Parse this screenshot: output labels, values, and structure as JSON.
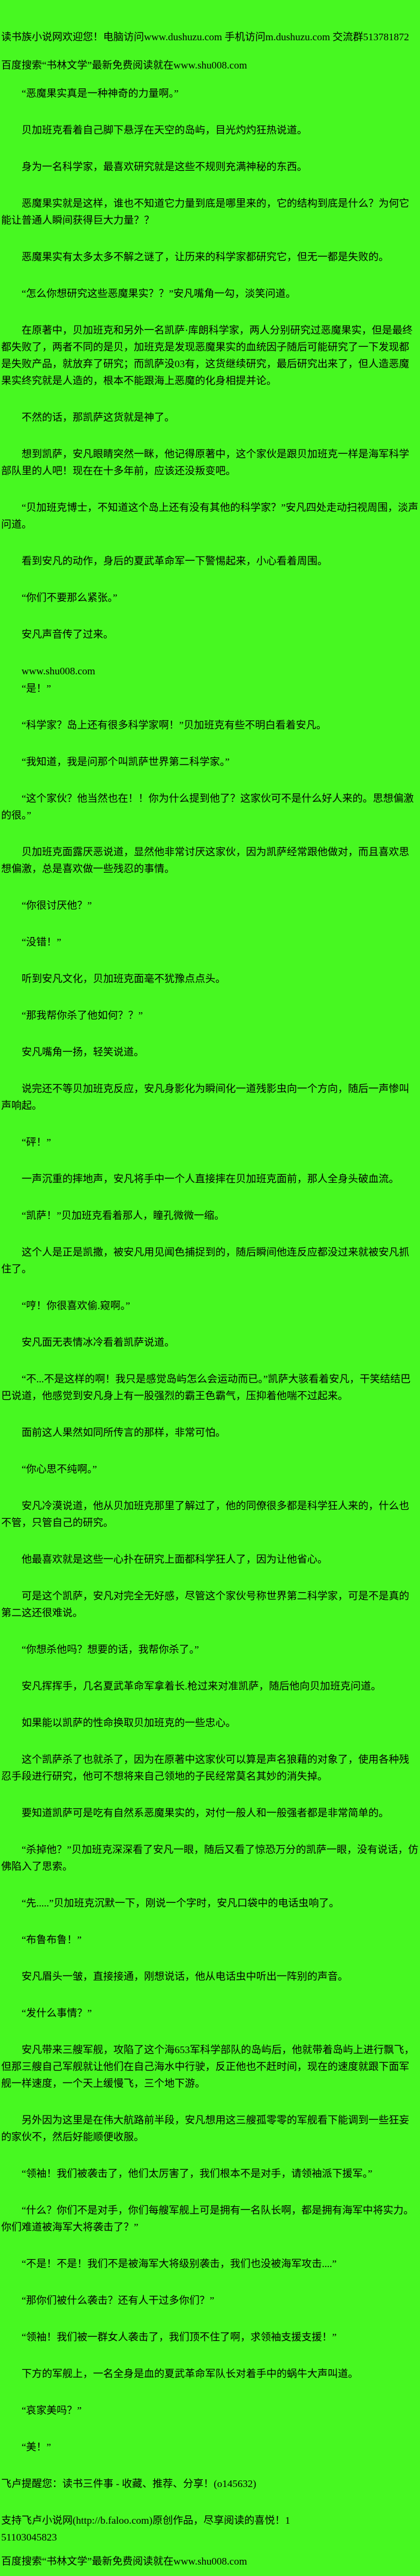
{
  "page": {
    "kind": "web-novel-reading-page",
    "background_color": "#47F821",
    "text_color": "#000000"
  },
  "paragraphs": [
    {
      "name": "site-welcome-line",
      "indent": false,
      "gap": "header",
      "text": "读书族小说网欢迎您！电脑访问www.dushuzu.com 手机访问m.dushuzu.com 交流群513781872"
    },
    {
      "name": "baidu-search-ad-top",
      "indent": false,
      "gap": "header",
      "text": "百度搜索“书林文学”最新免费阅读就在www.shu008.com"
    },
    {
      "name": "novel-paragraph",
      "indent": true,
      "text": "“恶魔果实真是一种神奇的力量啊。”"
    },
    {
      "name": "novel-paragraph",
      "indent": true,
      "text": "贝加班克看着自己脚下悬浮在天空的岛屿，目光灼灼狂热说道。"
    },
    {
      "name": "novel-paragraph",
      "indent": true,
      "text": "身为一名科学家，最喜欢研究就是这些不规则充满神秘的东西。"
    },
    {
      "name": "novel-paragraph",
      "indent": true,
      "text": "恶魔果实就是这样，谁也不知道它力量到底是哪里来的，它的结构到底是什么？为何它能让普通人瞬间获得巨大力量？？"
    },
    {
      "name": "novel-paragraph",
      "indent": true,
      "text": "恶魔果实有太多太多不解之谜了，让历来的科学家都研究它，但无一都是失败的。"
    },
    {
      "name": "novel-paragraph",
      "indent": true,
      "text": "“怎么你想研究这些恶魔果实？？”安凡嘴角一勾，淡笑问道。"
    },
    {
      "name": "novel-paragraph",
      "indent": true,
      "text": "在原著中，贝加班克和另外一名凯萨·库朗科学家，两人分别研究过恶魔果实，但是最终都失败了，两者不同的是贝，加班克是发现恶魔果实的血统因子随后可能研究了一下发现都是失败产品，就放弃了研究；而凯萨没03有，这货继续研究，最后研究出来了，但人造恶魔果实终究就是人造的，根本不能跟海上恶魔的化身相提并论。"
    },
    {
      "name": "novel-paragraph",
      "indent": true,
      "text": "不然的话，那凯萨这货就是神了。"
    },
    {
      "name": "novel-paragraph",
      "indent": true,
      "text": "想到凯萨，安凡眼睛突然一眯，他记得原著中，这个家伙是跟贝加班克一样是海军科学部队里的人吧！现在在十多年前，应该还没叛变吧。"
    },
    {
      "name": "novel-paragraph",
      "indent": true,
      "text": "“贝加班克博士，不知道这个岛上还有没有其他的科学家？”安凡四处走动扫视周围，淡声问道。"
    },
    {
      "name": "novel-paragraph",
      "indent": true,
      "text": "看到安凡的动作，身后的夏武革命军一下警惕起来，小心看着周围。"
    },
    {
      "name": "novel-paragraph",
      "indent": true,
      "text": "“你们不要那么紧张。”"
    },
    {
      "name": "novel-paragraph",
      "indent": true,
      "text": "安凡声音传了过来。"
    },
    {
      "name": "inline-ad-url",
      "indent": true,
      "gap": "tight",
      "text": "www.shu008.com"
    },
    {
      "name": "novel-paragraph",
      "indent": true,
      "text": "“是！”"
    },
    {
      "name": "novel-paragraph",
      "indent": true,
      "text": "“科学家？岛上还有很多科学家啊！”贝加班克有些不明白看着安凡。"
    },
    {
      "name": "novel-paragraph",
      "indent": true,
      "text": "“我知道，我是问那个叫凯萨世界第二科学家。”"
    },
    {
      "name": "novel-paragraph",
      "indent": true,
      "text": "“这个家伙？他当然也在！！你为什么提到他了？这家伙可不是什么好人来的。思想偏激的很。”"
    },
    {
      "name": "novel-paragraph",
      "indent": true,
      "text": "贝加班克面露厌恶说道，显然他非常讨厌这家伙，因为凯萨经常跟他做对，而且喜欢思想偏激，总是喜欢做一些残忍的事情。"
    },
    {
      "name": "novel-paragraph",
      "indent": true,
      "text": "“你很讨厌他？”"
    },
    {
      "name": "novel-paragraph",
      "indent": true,
      "text": "“没错！”"
    },
    {
      "name": "novel-paragraph",
      "indent": true,
      "text": "听到安凡文化，贝加班克面毫不犹豫点点头。"
    },
    {
      "name": "novel-paragraph",
      "indent": true,
      "text": "“那我帮你杀了他如何？？”"
    },
    {
      "name": "novel-paragraph",
      "indent": true,
      "text": "安凡嘴角一扬，轻笑说道。"
    },
    {
      "name": "novel-paragraph",
      "indent": true,
      "text": "说完还不等贝加班克反应，安凡身影化为瞬间化一道残影虫向一个方向，随后一声惨叫声响起。"
    },
    {
      "name": "novel-paragraph",
      "indent": true,
      "text": "“砰！”"
    },
    {
      "name": "novel-paragraph",
      "indent": true,
      "text": "一声沉重的摔地声，安凡将手中一个人直接摔在贝加班克面前，那人全身头破血流。"
    },
    {
      "name": "novel-paragraph",
      "indent": true,
      "text": "“凯萨！”贝加班克看着那人，瞳孔微微一缩。"
    },
    {
      "name": "novel-paragraph",
      "indent": true,
      "text": "这个人是正是凯撒，被安凡用见闻色捕捉到的，随后瞬间他连反应都没过来就被安凡抓住了。"
    },
    {
      "name": "novel-paragraph",
      "indent": true,
      "text": "“哼！你很喜欢偷.窥啊。”"
    },
    {
      "name": "novel-paragraph",
      "indent": true,
      "text": "安凡面无表情冰冷看着凯萨说道。"
    },
    {
      "name": "novel-paragraph",
      "indent": true,
      "text": "“不...不是这样的啊！我只是感觉岛屿怎么会运动而已。”凯萨大骇看着安凡，干笑结结巴巴说道，他感觉到安凡身上有一股强烈的霸王色霸气，压抑着他喘不过起来。"
    },
    {
      "name": "novel-paragraph",
      "indent": true,
      "text": "面前这人果然如同所传言的那样，非常可怕。"
    },
    {
      "name": "novel-paragraph",
      "indent": true,
      "text": "“你心思不纯啊。”"
    },
    {
      "name": "novel-paragraph",
      "indent": true,
      "text": "安凡冷漠说道，他从贝加班克那里了解过了，他的同僚很多都是科学狂人来的，什么也不管，只管自己的研究。"
    },
    {
      "name": "novel-paragraph",
      "indent": true,
      "text": "他最喜欢就是这些一心扑在研究上面都科学狂人了，因为让他省心。"
    },
    {
      "name": "novel-paragraph",
      "indent": true,
      "text": "可是这个凯萨，安凡对完全无好感，尽管这个家伙号称世界第二科学家，可是不是真的第二这还很难说。"
    },
    {
      "name": "novel-paragraph",
      "indent": true,
      "text": "“你想杀他吗？想要的话，我帮你杀了。”"
    },
    {
      "name": "novel-paragraph",
      "indent": true,
      "text": "安凡挥挥手，几名夏武革命军拿着长.枪过来对准凯萨，随后他向贝加班克问道。"
    },
    {
      "name": "novel-paragraph",
      "indent": true,
      "text": "如果能以凯萨的性命换取贝加班克的一些忠心。"
    },
    {
      "name": "novel-paragraph",
      "indent": true,
      "text": "这个凯萨杀了也就杀了，因为在原著中这家伙可以算是声名狼藉的对象了，使用各种残忍手段进行研究，他可不想将来自己领地的子民经常莫名其妙的消失掉。"
    },
    {
      "name": "novel-paragraph",
      "indent": true,
      "text": "要知道凯萨可是吃有自然系恶魔果实的，对付一般人和一般强者都是非常简单的。"
    },
    {
      "name": "novel-paragraph",
      "indent": true,
      "text": "“杀掉他？”贝加班克深深看了安凡一眼，随后又看了惊恐万分的凯萨一眼，没有说话，仿佛陷入了思索。"
    },
    {
      "name": "novel-paragraph",
      "indent": true,
      "text": "“先.....”贝加班克沉默一下，刚说一个字时，安凡口袋中的电话虫响了。"
    },
    {
      "name": "novel-paragraph",
      "indent": true,
      "text": "“布鲁布鲁！”"
    },
    {
      "name": "novel-paragraph",
      "indent": true,
      "text": "安凡眉头一皱，直接接通，刚想说话，他从电话虫中听出一阵别的声音。"
    },
    {
      "name": "novel-paragraph",
      "indent": true,
      "text": "“发什么事情？”"
    },
    {
      "name": "novel-paragraph",
      "indent": true,
      "text": "安凡带来三艘军舰，攻陷了这个海653军科学部队的岛屿后，他就带着岛屿上进行飘飞，但那三艘自己军舰就让他们在自己海水中行驶，反正他也不赶时间，现在的速度就跟下面军舰一样速度，一个天上缓慢飞，三个地下游。"
    },
    {
      "name": "novel-paragraph",
      "indent": true,
      "text": "另外因为这里是在伟大航路前半段，安凡想用这三艘孤零零的军舰看下能调到一些狂妄的家伙不，然后好能顺便收服。"
    },
    {
      "name": "novel-paragraph",
      "indent": true,
      "text": "“领袖！我们被袭击了，他们太厉害了，我们根本不是对手，请领袖派下援军。”"
    },
    {
      "name": "novel-paragraph",
      "indent": true,
      "text": "“什么？你们不是对手，你们每艘军舰上可是拥有一名队长啊，都是拥有海军中将实力。你们难道被海军大将袭击了？”"
    },
    {
      "name": "novel-paragraph",
      "indent": true,
      "text": "“不是！不是！我们不是被海军大将级别袭击，我们也没被海军攻击....”"
    },
    {
      "name": "novel-paragraph",
      "indent": true,
      "text": "“那你们被什么袭击？还有人干过多你们？”"
    },
    {
      "name": "novel-paragraph",
      "indent": true,
      "text": "“领袖！我们被一群女人袭击了，我们顶不住了啊，求领袖支援支援！”"
    },
    {
      "name": "novel-paragraph",
      "indent": true,
      "text": "下方的军舰上，一名全身是血的夏武革命军队长对着手中的蜗牛大声叫道。"
    },
    {
      "name": "novel-paragraph",
      "indent": true,
      "text": "“哀家美吗？”"
    },
    {
      "name": "novel-paragraph",
      "indent": true,
      "text": "“美！”"
    },
    {
      "name": "faloo-reminder-line",
      "indent": false,
      "text": "飞卢提醒您：读书三件事 - 收藏、推荐、分享！(o145632)"
    },
    {
      "name": "faloo-support-line",
      "indent": false,
      "gap": "small",
      "text": "支持飞卢小说网(http://b.faloo.com)原创作品，尽享阅读的喜悦！1\n51103045823"
    },
    {
      "name": "baidu-search-ad-bottom",
      "indent": false,
      "gap": "none",
      "text": "百度搜索“书林文学”最新免费阅读就在www.shu008.com"
    }
  ]
}
